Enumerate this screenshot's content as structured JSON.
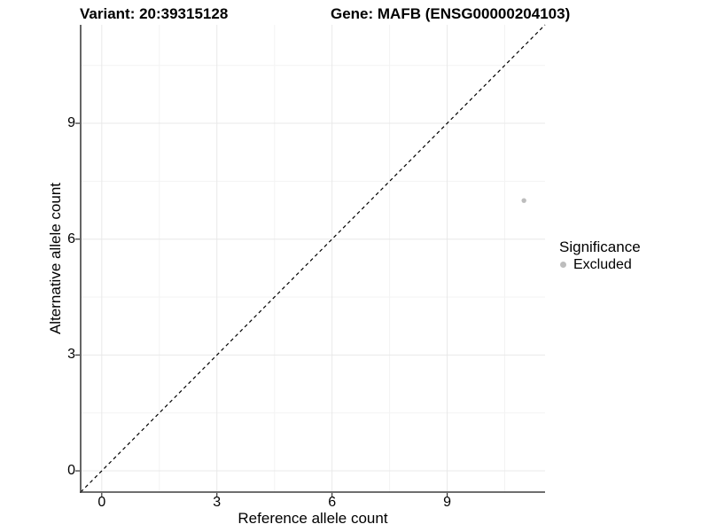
{
  "titles": {
    "variant": "Variant: 20:39315128",
    "gene": "Gene: MAFB (ENSG00000204103)"
  },
  "legend": {
    "title": "Significance",
    "items": [
      {
        "label": "Excluded",
        "color": "#bdbdbd"
      }
    ]
  },
  "chart_data": {
    "type": "scatter",
    "title": "Variant: 20:39315128 | Gene: MAFB (ENSG00000204103)",
    "xlabel": "Reference allele count",
    "ylabel": "Alternative allele count",
    "xlim": [
      -0.55,
      11.55
    ],
    "ylim": [
      -0.55,
      11.55
    ],
    "x_ticks": [
      0,
      3,
      6,
      9
    ],
    "y_ticks": [
      0,
      3,
      6,
      9
    ],
    "x_minor_ticks": [
      1.5,
      4.5,
      7.5,
      10.5
    ],
    "y_minor_ticks": [
      1.5,
      4.5,
      7.5,
      10.5
    ],
    "grid": true,
    "legend_position": "right",
    "series": [
      {
        "name": "Excluded",
        "color": "#bdbdbd",
        "marker": "circle",
        "points": [
          [
            11,
            7
          ]
        ]
      }
    ],
    "reference_line": {
      "type": "identity y=x",
      "style": "dashed",
      "color": "#000000",
      "from": [
        -0.55,
        -0.55
      ],
      "to": [
        11.55,
        11.55
      ]
    }
  },
  "style": {
    "background": "#ffffff",
    "text_color": "#000000",
    "axis_line_color": "#3f3f3f",
    "tick_color": "#333333",
    "grid_major_color": "#e8e8e8",
    "grid_minor_color": "#f3f3f3"
  }
}
